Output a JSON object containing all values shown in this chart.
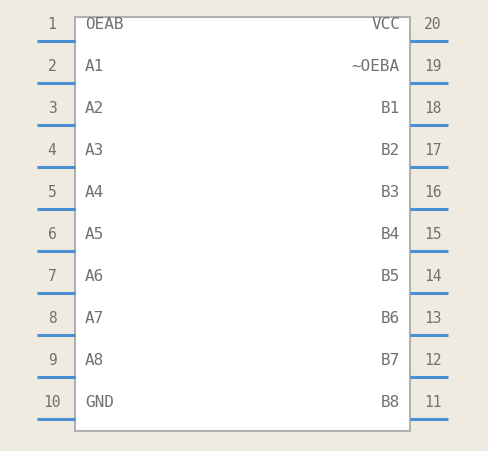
{
  "background": "#f0ebe0",
  "body_color": "#ffffff",
  "body_edge_color": "#b0b0b0",
  "pin_color": "#4a8fd4",
  "text_color": "#707070",
  "number_color": "#707070",
  "left_pins": [
    {
      "num": 1,
      "label": "OEAB"
    },
    {
      "num": 2,
      "label": "A1"
    },
    {
      "num": 3,
      "label": "A2"
    },
    {
      "num": 4,
      "label": "A3"
    },
    {
      "num": 5,
      "label": "A4"
    },
    {
      "num": 6,
      "label": "A5"
    },
    {
      "num": 7,
      "label": "A6"
    },
    {
      "num": 8,
      "label": "A7"
    },
    {
      "num": 9,
      "label": "A8"
    },
    {
      "num": 10,
      "label": "GND"
    }
  ],
  "right_pins": [
    {
      "num": 20,
      "label": "VCC"
    },
    {
      "num": 19,
      "label": "~OEBA"
    },
    {
      "num": 18,
      "label": "B1"
    },
    {
      "num": 17,
      "label": "B2"
    },
    {
      "num": 16,
      "label": "B3"
    },
    {
      "num": 15,
      "label": "B4"
    },
    {
      "num": 14,
      "label": "B5"
    },
    {
      "num": 13,
      "label": "B6"
    },
    {
      "num": 12,
      "label": "B7"
    },
    {
      "num": 11,
      "label": "B8"
    }
  ],
  "fig_w": 4.88,
  "fig_h": 4.52,
  "dpi": 100,
  "font_size_label": 11.5,
  "font_size_num": 10.5,
  "font_family": "monospace",
  "pin_lw": 2.2,
  "body_lw": 1.5
}
